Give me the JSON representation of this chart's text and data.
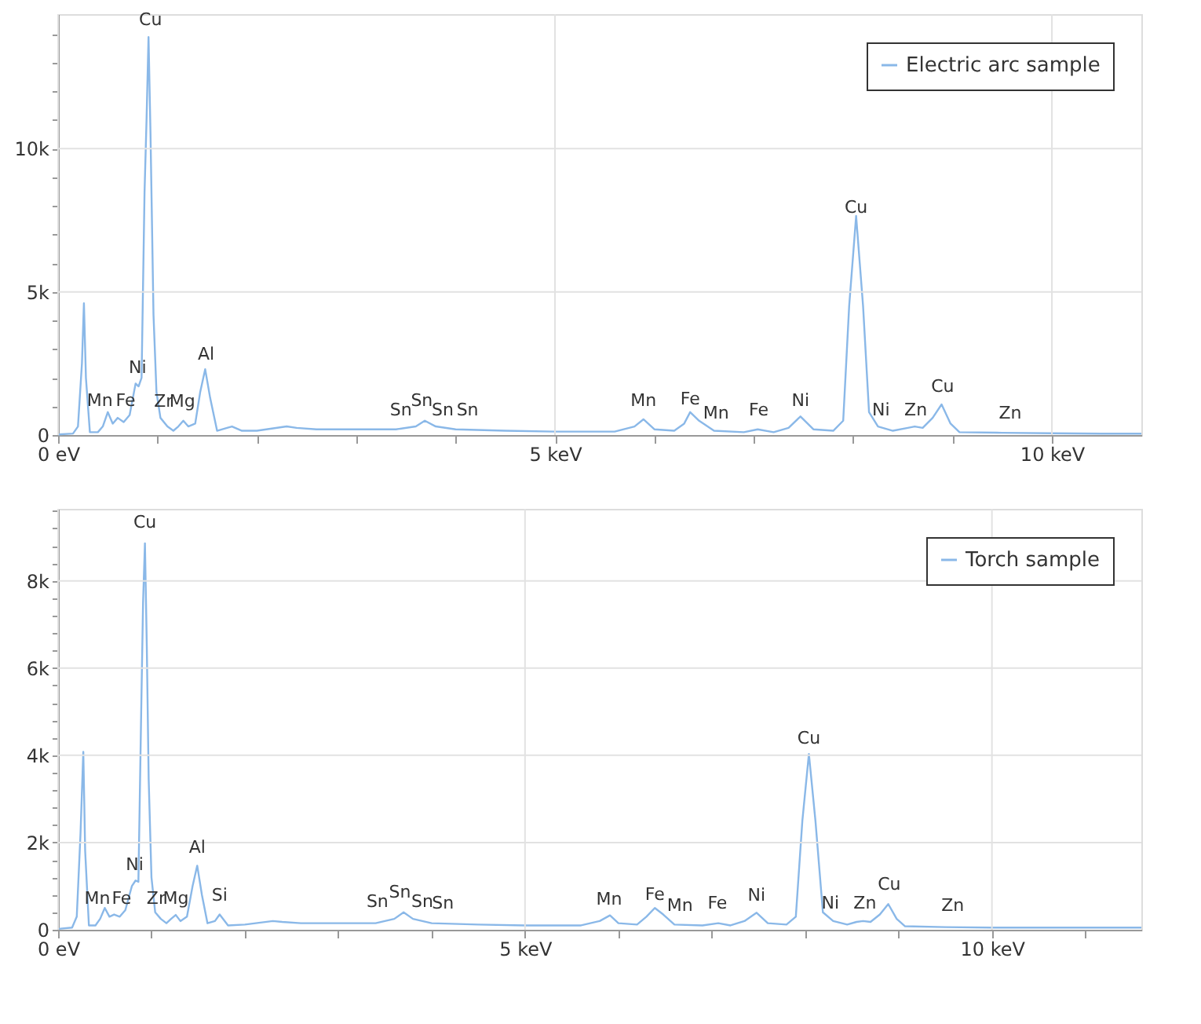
{
  "chart_data": [
    {
      "type": "line",
      "grid": true,
      "legend": "top right",
      "series": [
        {
          "name": "Electric arc sample",
          "color": "#8ab8e8",
          "x": [
            0,
            0.15,
            0.2,
            0.24,
            0.26,
            0.28,
            0.32,
            0.4,
            0.45,
            0.5,
            0.55,
            0.6,
            0.66,
            0.72,
            0.78,
            0.81,
            0.84,
            0.87,
            0.89,
            0.91,
            0.93,
            0.96,
            0.99,
            1.03,
            1.1,
            1.16,
            1.21,
            1.26,
            1.31,
            1.38,
            1.43,
            1.48,
            1.53,
            1.6,
            1.7,
            1.75,
            1.85,
            2.0,
            2.3,
            2.4,
            2.6,
            3.0,
            3.4,
            3.6,
            3.69,
            3.8,
            4.0,
            4.5,
            5.0,
            5.6,
            5.8,
            5.89,
            6.0,
            6.2,
            6.3,
            6.36,
            6.45,
            6.6,
            6.9,
            7.04,
            7.2,
            7.35,
            7.47,
            7.6,
            7.8,
            7.9,
            7.96,
            8.03,
            8.1,
            8.16,
            8.25,
            8.4,
            8.55,
            8.62,
            8.7,
            8.8,
            8.89,
            8.98,
            9.07,
            9.5,
            10.0,
            10.5,
            10.9
          ],
          "values": [
            20,
            50,
            300,
            2500,
            4600,
            2000,
            100,
            100,
            300,
            800,
            400,
            600,
            450,
            700,
            1800,
            1700,
            2000,
            8500,
            11000,
            13900,
            10500,
            4200,
            1500,
            600,
            300,
            150,
            300,
            500,
            300,
            400,
            1500,
            2300,
            1300,
            150,
            250,
            300,
            150,
            150,
            300,
            250,
            200,
            200,
            200,
            300,
            500,
            300,
            200,
            150,
            120,
            120,
            300,
            550,
            200,
            150,
            400,
            800,
            500,
            150,
            100,
            200,
            100,
            250,
            650,
            200,
            150,
            500,
            4500,
            7650,
            4500,
            800,
            300,
            150,
            250,
            300,
            250,
            600,
            1070,
            400,
            100,
            80,
            60,
            50,
            50
          ]
        }
      ],
      "xlim": [
        0,
        10.9
      ],
      "xticks": [
        {
          "value": 0,
          "label": "0 eV"
        },
        {
          "value": 1,
          "label": null
        },
        {
          "value": 2,
          "label": null
        },
        {
          "value": 3,
          "label": null
        },
        {
          "value": 4,
          "label": null
        },
        {
          "value": 5,
          "label": "5 keV"
        },
        {
          "value": 6,
          "label": null
        },
        {
          "value": 7,
          "label": null
        },
        {
          "value": 8,
          "label": null
        },
        {
          "value": 9,
          "label": null
        },
        {
          "value": 10,
          "label": "10 keV"
        }
      ],
      "ylim": [
        0,
        14700
      ],
      "yticks": [
        0,
        {
          "value": 1000,
          "label": null
        },
        {
          "value": 2000,
          "label": null
        },
        {
          "value": 3000,
          "label": null
        },
        {
          "value": 4000,
          "label": null
        },
        {
          "value": 5000,
          "label": "5k"
        },
        {
          "value": 6000,
          "label": null
        },
        {
          "value": 7000,
          "label": null
        },
        {
          "value": 8000,
          "label": null
        },
        {
          "value": 9000,
          "label": null
        },
        {
          "value": 10000,
          "label": "10k"
        },
        {
          "value": 11000,
          "label": null
        },
        {
          "value": 12000,
          "label": null
        },
        {
          "value": 13000,
          "label": null
        },
        {
          "value": 14000,
          "label": null
        }
      ],
      "annotations": [
        {
          "text": "Cu",
          "x": 0.93,
          "y": 14050
        },
        {
          "text": "Ni",
          "x": 0.8,
          "y": 1900
        },
        {
          "text": "Mn",
          "x": 0.42,
          "y": 740
        },
        {
          "text": "Fe",
          "x": 0.68,
          "y": 740
        },
        {
          "text": "Zr",
          "x": 1.06,
          "y": 700
        },
        {
          "text": "Mg",
          "x": 1.25,
          "y": 700
        },
        {
          "text": "Al",
          "x": 1.49,
          "y": 2350
        },
        {
          "text": "Sn",
          "x": 3.45,
          "y": 400
        },
        {
          "text": "Sn",
          "x": 3.66,
          "y": 740
        },
        {
          "text": "Sn",
          "x": 3.87,
          "y": 400
        },
        {
          "text": "Sn",
          "x": 4.12,
          "y": 400
        },
        {
          "text": "Mn",
          "x": 5.89,
          "y": 750
        },
        {
          "text": "Fe",
          "x": 6.36,
          "y": 800
        },
        {
          "text": "Mn",
          "x": 6.62,
          "y": 300
        },
        {
          "text": "Fe",
          "x": 7.05,
          "y": 400
        },
        {
          "text": "Ni",
          "x": 7.47,
          "y": 750
        },
        {
          "text": "Cu",
          "x": 8.03,
          "y": 7500
        },
        {
          "text": "Ni",
          "x": 8.28,
          "y": 400
        },
        {
          "text": "Zn",
          "x": 8.63,
          "y": 400
        },
        {
          "text": "Cu",
          "x": 8.9,
          "y": 1240
        },
        {
          "text": "Zn",
          "x": 9.58,
          "y": 300
        }
      ]
    },
    {
      "type": "line",
      "grid": true,
      "legend": "top right",
      "series": [
        {
          "name": "Torch sample",
          "color": "#8ab8e8",
          "x": [
            0,
            0.15,
            0.2,
            0.24,
            0.27,
            0.29,
            0.33,
            0.4,
            0.45,
            0.5,
            0.55,
            0.6,
            0.66,
            0.72,
            0.79,
            0.83,
            0.86,
            0.89,
            0.91,
            0.93,
            0.95,
            0.97,
            1.0,
            1.04,
            1.1,
            1.16,
            1.21,
            1.26,
            1.31,
            1.38,
            1.44,
            1.49,
            1.54,
            1.6,
            1.68,
            1.73,
            1.82,
            2.0,
            2.3,
            2.4,
            2.6,
            3.0,
            3.4,
            3.6,
            3.7,
            3.8,
            4.0,
            4.5,
            5.0,
            5.6,
            5.8,
            5.91,
            6.0,
            6.2,
            6.3,
            6.39,
            6.48,
            6.6,
            6.9,
            7.07,
            7.2,
            7.35,
            7.48,
            7.6,
            7.8,
            7.9,
            7.97,
            8.04,
            8.11,
            8.19,
            8.3,
            8.45,
            8.55,
            8.62,
            8.7,
            8.8,
            8.89,
            8.98,
            9.07,
            9.5,
            10.0,
            10.5,
            11.0,
            11.6
          ],
          "values": [
            20,
            50,
            300,
            2200,
            4080,
            1800,
            100,
            100,
            250,
            500,
            300,
            350,
            300,
            450,
            1000,
            1130,
            1100,
            5000,
            7500,
            8860,
            6500,
            3460,
            1200,
            400,
            250,
            150,
            250,
            340,
            200,
            300,
            1000,
            1470,
            800,
            150,
            200,
            350,
            100,
            120,
            200,
            180,
            150,
            150,
            150,
            250,
            400,
            250,
            150,
            120,
            100,
            100,
            200,
            330,
            150,
            120,
            300,
            500,
            350,
            120,
            100,
            150,
            100,
            200,
            390,
            150,
            120,
            300,
            2500,
            4030,
            2500,
            400,
            200,
            120,
            180,
            200,
            180,
            350,
            590,
            250,
            80,
            60,
            50,
            50,
            50,
            50
          ]
        }
      ],
      "xlim": [
        0,
        11.6
      ],
      "xticks": [
        {
          "value": 0,
          "label": "0 eV"
        },
        {
          "value": 1,
          "label": null
        },
        {
          "value": 2,
          "label": null
        },
        {
          "value": 3,
          "label": null
        },
        {
          "value": 4,
          "label": null
        },
        {
          "value": 5,
          "label": "5 keV"
        },
        {
          "value": 6,
          "label": null
        },
        {
          "value": 7,
          "label": null
        },
        {
          "value": 8,
          "label": null
        },
        {
          "value": 9,
          "label": null
        },
        {
          "value": 10,
          "label": "10 keV"
        },
        {
          "value": 11,
          "label": null
        }
      ],
      "ylim": [
        0,
        9650
      ],
      "yticks": [
        0,
        {
          "value": 400,
          "label": null
        },
        {
          "value": 800,
          "label": null
        },
        {
          "value": 1200,
          "label": null
        },
        {
          "value": 1600,
          "label": null
        },
        {
          "value": 2000,
          "label": "2k"
        },
        {
          "value": 2400,
          "label": null
        },
        {
          "value": 2800,
          "label": null
        },
        {
          "value": 3200,
          "label": null
        },
        {
          "value": 3600,
          "label": null
        },
        {
          "value": 4000,
          "label": "4k"
        },
        {
          "value": 4400,
          "label": null
        },
        {
          "value": 4800,
          "label": null
        },
        {
          "value": 5200,
          "label": null
        },
        {
          "value": 5600,
          "label": null
        },
        {
          "value": 6000,
          "label": "6k"
        },
        {
          "value": 6400,
          "label": null
        },
        {
          "value": 6800,
          "label": null
        },
        {
          "value": 7200,
          "label": null
        },
        {
          "value": 7600,
          "label": null
        },
        {
          "value": 8000,
          "label": "8k"
        },
        {
          "value": 8400,
          "label": null
        },
        {
          "value": 8800,
          "label": null
        },
        {
          "value": 9200,
          "label": null
        },
        {
          "value": 9600,
          "label": null
        }
      ],
      "annotations": [
        {
          "text": "Cu",
          "x": 0.93,
          "y": 9030
        },
        {
          "text": "Ni",
          "x": 0.82,
          "y": 1180
        },
        {
          "text": "Mn",
          "x": 0.42,
          "y": 410
        },
        {
          "text": "Fe",
          "x": 0.68,
          "y": 410
        },
        {
          "text": "Zr",
          "x": 1.05,
          "y": 410
        },
        {
          "text": "Mg",
          "x": 1.26,
          "y": 410
        },
        {
          "text": "Al",
          "x": 1.49,
          "y": 1580
        },
        {
          "text": "Si",
          "x": 1.73,
          "y": 480
        },
        {
          "text": "Sn",
          "x": 3.42,
          "y": 350
        },
        {
          "text": "Sn",
          "x": 3.66,
          "y": 550
        },
        {
          "text": "Sn",
          "x": 3.9,
          "y": 350
        },
        {
          "text": "Sn",
          "x": 4.12,
          "y": 300
        },
        {
          "text": "Mn",
          "x": 5.9,
          "y": 400
        },
        {
          "text": "Fe",
          "x": 6.39,
          "y": 500
        },
        {
          "text": "Mn",
          "x": 6.66,
          "y": 250
        },
        {
          "text": "Fe",
          "x": 7.06,
          "y": 300
        },
        {
          "text": "Ni",
          "x": 7.48,
          "y": 480
        },
        {
          "text": "Cu",
          "x": 8.04,
          "y": 4080
        },
        {
          "text": "Ni",
          "x": 8.27,
          "y": 300
        },
        {
          "text": "Zn",
          "x": 8.64,
          "y": 300
        },
        {
          "text": "Cu",
          "x": 8.9,
          "y": 730
        },
        {
          "text": "Zn",
          "x": 9.58,
          "y": 250
        }
      ]
    }
  ]
}
